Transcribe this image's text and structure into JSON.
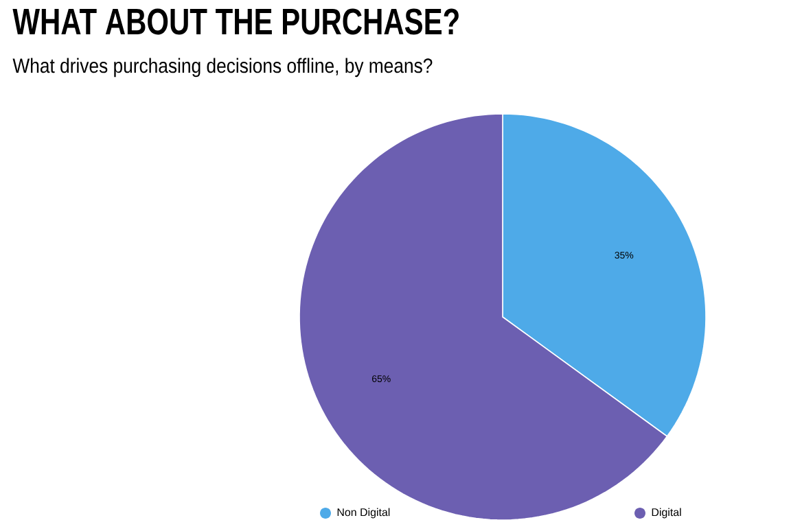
{
  "chart_data": {
    "type": "pie",
    "title": "WHAT ABOUT THE PURCHASE?",
    "subtitle": "What drives purchasing decisions offline, by means?",
    "categories": [
      "Non Digital",
      "Digital"
    ],
    "values": [
      35,
      65
    ],
    "colors": [
      "#4eaae8",
      "#6c5fb1"
    ],
    "value_labels": [
      "35%",
      "65%"
    ],
    "legend": "bottom"
  }
}
